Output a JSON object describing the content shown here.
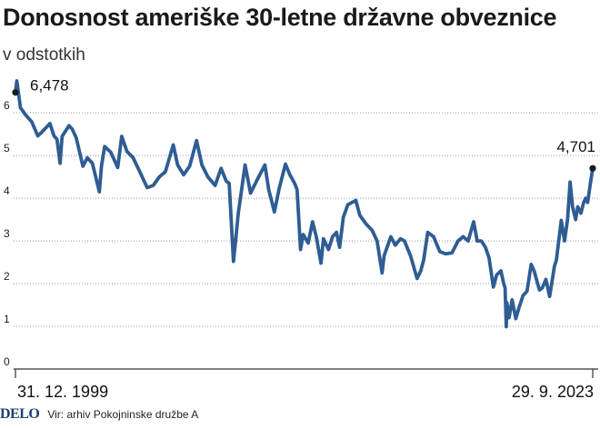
{
  "header": {
    "title": "Donosnost ameriške 30-letne državne obveznice",
    "subtitle": "v odstotkih"
  },
  "footer": {
    "logo": "DELO",
    "source": "Vir: arhiv Pokojninske družbe A"
  },
  "colors": {
    "line": "#2f5d93",
    "marker": "#1a1a1a"
  },
  "chart_data": {
    "type": "line",
    "title": "Donosnost ameriške 30-letne državne obveznice",
    "subtitle": "v odstotkih",
    "ylim": [
      0,
      6.6
    ],
    "yticks": [
      0,
      1,
      2,
      3,
      4,
      5,
      6
    ],
    "xlim": [
      "1999-12-31",
      "2023-09-29"
    ],
    "x_tick_labels": [
      "31. 12. 1999",
      "29. 9. 2023"
    ],
    "grid": true,
    "annotations": [
      {
        "x": "1999-12-31",
        "y": 6.478,
        "label": "6,478"
      },
      {
        "x": "2023-09-29",
        "y": 4.701,
        "label": "4,701"
      }
    ],
    "series": [
      {
        "x": [
          "1999-12-31",
          "2000-01-21",
          "2000-03-15",
          "2000-06-01",
          "2000-09-01",
          "2000-12-01",
          "2001-02-01",
          "2001-04-01",
          "2001-06-01",
          "2001-08-01",
          "2001-09-15",
          "2001-10-31",
          "2001-12-01",
          "2002-03-15",
          "2002-05-01",
          "2002-07-01",
          "2002-08-15",
          "2002-10-09",
          "2002-12-15",
          "2003-03-01",
          "2003-06-13",
          "2003-07-15",
          "2003-09-01",
          "2003-12-01",
          "2004-03-15",
          "2004-05-15",
          "2004-08-01",
          "2004-11-01",
          "2005-02-01",
          "2005-06-01",
          "2005-09-01",
          "2005-12-01",
          "2006-03-01",
          "2006-06-28",
          "2006-09-01",
          "2006-12-01",
          "2007-03-01",
          "2007-06-13",
          "2007-09-01",
          "2007-12-01",
          "2008-03-17",
          "2008-06-15",
          "2008-09-01",
          "2008-10-15",
          "2008-12-18",
          "2009-01-15",
          "2009-03-01",
          "2009-06-11",
          "2009-09-01",
          "2009-12-15",
          "2010-04-05",
          "2010-06-01",
          "2010-08-25",
          "2010-11-01",
          "2011-02-08",
          "2011-04-15",
          "2011-06-25",
          "2011-08-01",
          "2011-09-22",
          "2011-11-01",
          "2012-01-15",
          "2012-03-20",
          "2012-05-15",
          "2012-07-25",
          "2012-09-01",
          "2012-11-15",
          "2013-01-15",
          "2013-03-15",
          "2013-05-01",
          "2013-06-25",
          "2013-09-01",
          "2013-12-31",
          "2014-03-01",
          "2014-06-01",
          "2014-09-01",
          "2014-11-15",
          "2015-01-30",
          "2015-03-01",
          "2015-06-10",
          "2015-08-15",
          "2015-11-01",
          "2016-01-01",
          "2016-04-01",
          "2016-07-08",
          "2016-09-01",
          "2016-10-15",
          "2016-12-15",
          "2017-03-13",
          "2017-06-15",
          "2017-09-07",
          "2017-12-15",
          "2018-03-15",
          "2018-06-01",
          "2018-08-15",
          "2018-11-05",
          "2018-12-28",
          "2019-03-01",
          "2019-05-01",
          "2019-06-25",
          "2019-08-28",
          "2019-10-15",
          "2019-12-20",
          "2020-01-31",
          "2020-02-20",
          "2020-03-09",
          "2020-03-19",
          "2020-04-21",
          "2020-06-05",
          "2020-07-31",
          "2020-09-15",
          "2020-11-15",
          "2021-01-15",
          "2021-03-18",
          "2021-05-01",
          "2021-07-20",
          "2021-09-01",
          "2021-10-26",
          "2021-12-20",
          "2022-01-31",
          "2022-03-01",
          "2022-04-01",
          "2022-05-15",
          "2022-06-14",
          "2022-08-01",
          "2022-09-15",
          "2022-10-24",
          "2022-11-30",
          "2023-01-15",
          "2023-02-15",
          "2023-04-05",
          "2023-05-15",
          "2023-06-15",
          "2023-07-15",
          "2023-08-21",
          "2023-09-29"
        ],
        "values": [
          6.478,
          6.75,
          6.12,
          5.95,
          5.79,
          5.46,
          5.55,
          5.65,
          5.75,
          5.46,
          5.38,
          4.82,
          5.45,
          5.7,
          5.62,
          5.42,
          5.12,
          4.75,
          4.95,
          4.82,
          4.15,
          4.75,
          5.21,
          5.08,
          4.72,
          5.45,
          5.1,
          4.95,
          4.65,
          4.25,
          4.3,
          4.5,
          4.62,
          5.25,
          4.78,
          4.55,
          4.75,
          5.35,
          4.78,
          4.5,
          4.3,
          4.7,
          4.4,
          4.35,
          2.52,
          2.92,
          3.65,
          4.78,
          4.12,
          4.45,
          4.78,
          4.2,
          3.68,
          4.2,
          4.8,
          4.55,
          4.35,
          4.2,
          2.8,
          3.15,
          2.95,
          3.45,
          3.1,
          2.48,
          3.05,
          2.8,
          3.1,
          3.2,
          2.85,
          3.55,
          3.85,
          3.95,
          3.6,
          3.4,
          3.25,
          3.0,
          2.25,
          2.65,
          3.1,
          2.9,
          3.05,
          3.0,
          2.65,
          2.12,
          2.3,
          2.55,
          3.2,
          3.1,
          2.75,
          2.7,
          2.72,
          3.0,
          3.1,
          3.0,
          3.45,
          3.0,
          3.0,
          2.85,
          2.6,
          1.92,
          2.2,
          2.3,
          2.0,
          1.9,
          0.99,
          1.55,
          1.2,
          1.62,
          1.18,
          1.43,
          1.72,
          1.82,
          2.45,
          2.3,
          1.85,
          1.9,
          2.1,
          1.7,
          2.1,
          2.4,
          2.55,
          3.1,
          3.48,
          3.0,
          3.5,
          4.38,
          3.8,
          3.5,
          3.8,
          3.65,
          3.9,
          4.0,
          3.9,
          4.3,
          4.701
        ]
      }
    ]
  }
}
